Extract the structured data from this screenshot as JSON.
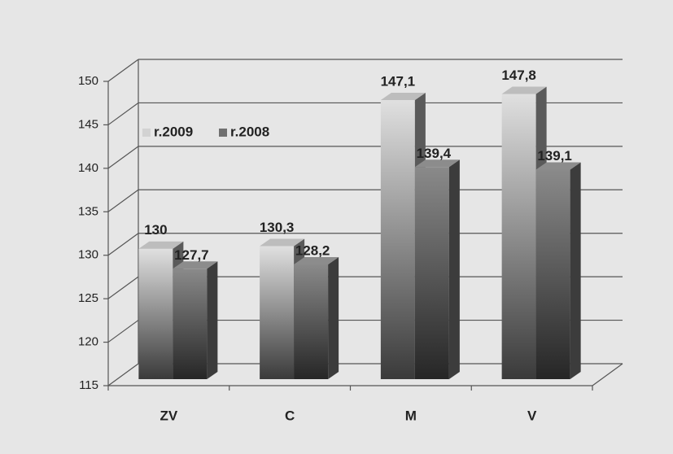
{
  "chart_data": {
    "type": "bar3d",
    "categories": [
      "ZV",
      "C",
      "M",
      "V"
    ],
    "series": [
      {
        "name": "r.2009",
        "color": "#d2d2d2",
        "values": [
          130,
          130.3,
          147.1,
          147.8
        ],
        "value_labels": [
          "130",
          "130,3",
          "147,1",
          "147,8"
        ]
      },
      {
        "name": "r.2008",
        "color": "#707070",
        "values": [
          127.7,
          128.2,
          139.4,
          139.1
        ],
        "value_labels": [
          "127,7",
          "128,2",
          "139,4",
          "139,1"
        ]
      }
    ],
    "ylim": [
      115,
      150
    ],
    "yticks": [
      115,
      120,
      125,
      130,
      135,
      140,
      145,
      150
    ],
    "grid": true,
    "legend": "upper left"
  }
}
